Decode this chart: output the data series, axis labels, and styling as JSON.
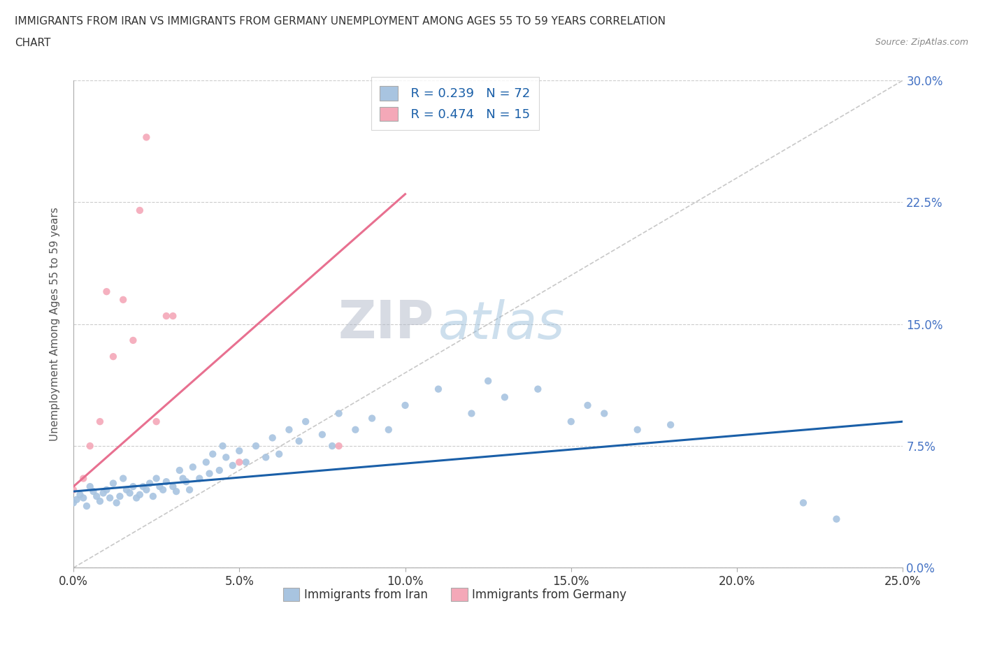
{
  "title_line1": "IMMIGRANTS FROM IRAN VS IMMIGRANTS FROM GERMANY UNEMPLOYMENT AMONG AGES 55 TO 59 YEARS CORRELATION",
  "title_line2": "CHART",
  "source_text": "Source: ZipAtlas.com",
  "ylabel": "Unemployment Among Ages 55 to 59 years",
  "xlabel_ticks": [
    "0.0%",
    "5.0%",
    "10.0%",
    "15.0%",
    "20.0%",
    "25.0%"
  ],
  "ylabel_ticks": [
    "0.0%",
    "7.5%",
    "15.0%",
    "22.5%",
    "30.0%"
  ],
  "xlim": [
    0.0,
    0.25
  ],
  "ylim": [
    0.0,
    0.3
  ],
  "iran_color": "#a8c4e0",
  "germany_color": "#f4a8b8",
  "iran_line_color": "#1a5fa8",
  "germany_line_color": "#e87090",
  "diagonal_color": "#c8c8c8",
  "watermark_zip": "ZIP",
  "watermark_atlas": "atlas",
  "legend_r_iran": "R = 0.239",
  "legend_n_iran": "N = 72",
  "legend_r_germany": "R = 0.474",
  "legend_n_germany": "N = 15",
  "iran_x": [
    0.0,
    0.001,
    0.002,
    0.003,
    0.004,
    0.005,
    0.006,
    0.007,
    0.008,
    0.009,
    0.01,
    0.011,
    0.012,
    0.013,
    0.014,
    0.015,
    0.016,
    0.017,
    0.018,
    0.019,
    0.02,
    0.021,
    0.022,
    0.023,
    0.024,
    0.025,
    0.026,
    0.027,
    0.028,
    0.03,
    0.031,
    0.032,
    0.033,
    0.034,
    0.035,
    0.036,
    0.038,
    0.04,
    0.041,
    0.042,
    0.044,
    0.045,
    0.046,
    0.048,
    0.05,
    0.052,
    0.055,
    0.058,
    0.06,
    0.062,
    0.065,
    0.068,
    0.07,
    0.075,
    0.078,
    0.08,
    0.085,
    0.09,
    0.095,
    0.1,
    0.11,
    0.12,
    0.125,
    0.13,
    0.14,
    0.15,
    0.155,
    0.16,
    0.17,
    0.18,
    0.22,
    0.23
  ],
  "iran_y": [
    0.04,
    0.042,
    0.045,
    0.043,
    0.038,
    0.05,
    0.047,
    0.044,
    0.041,
    0.046,
    0.048,
    0.043,
    0.052,
    0.04,
    0.044,
    0.055,
    0.048,
    0.046,
    0.05,
    0.043,
    0.045,
    0.05,
    0.048,
    0.052,
    0.044,
    0.055,
    0.05,
    0.048,
    0.053,
    0.05,
    0.047,
    0.06,
    0.055,
    0.053,
    0.048,
    0.062,
    0.055,
    0.065,
    0.058,
    0.07,
    0.06,
    0.075,
    0.068,
    0.063,
    0.072,
    0.065,
    0.075,
    0.068,
    0.08,
    0.07,
    0.085,
    0.078,
    0.09,
    0.082,
    0.075,
    0.095,
    0.085,
    0.092,
    0.085,
    0.1,
    0.11,
    0.095,
    0.115,
    0.105,
    0.11,
    0.09,
    0.1,
    0.095,
    0.085,
    0.088,
    0.04,
    0.03
  ],
  "germany_x": [
    0.0,
    0.003,
    0.005,
    0.008,
    0.01,
    0.012,
    0.015,
    0.018,
    0.02,
    0.022,
    0.025,
    0.028,
    0.03,
    0.05,
    0.08
  ],
  "germany_y": [
    0.048,
    0.055,
    0.075,
    0.09,
    0.17,
    0.13,
    0.165,
    0.14,
    0.22,
    0.265,
    0.09,
    0.155,
    0.155,
    0.065,
    0.075
  ],
  "iran_line_x0": 0.0,
  "iran_line_x1": 0.25,
  "iran_line_y0": 0.047,
  "iran_line_y1": 0.09,
  "germany_line_x0": 0.0,
  "germany_line_x1": 0.1,
  "germany_line_y0": 0.05,
  "germany_line_y1": 0.23
}
